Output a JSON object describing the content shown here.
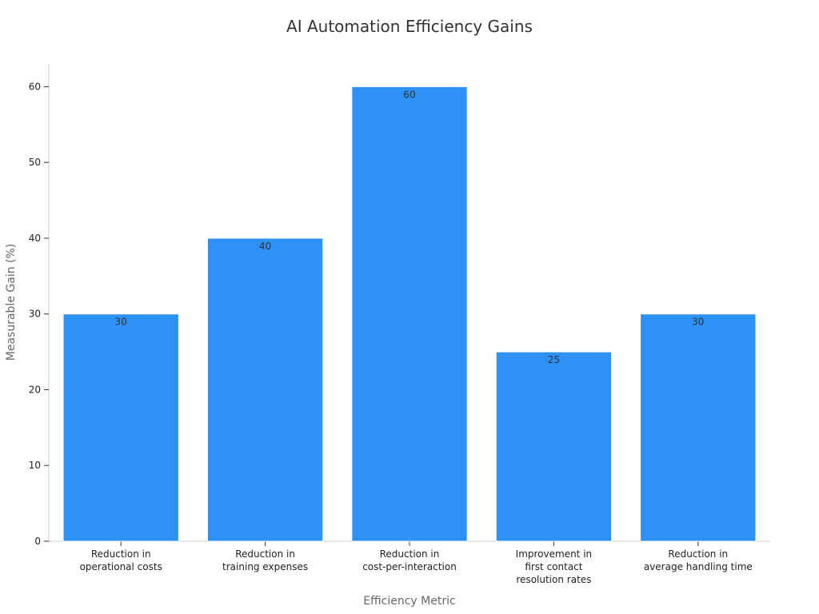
{
  "chart_data": {
    "type": "bar",
    "title": "AI Automation Efficiency Gains",
    "xlabel": "Efficiency Metric",
    "ylabel": "Measurable Gain (%)",
    "categories": [
      [
        "Reduction in",
        "operational costs"
      ],
      [
        "Reduction in",
        "training expenses"
      ],
      [
        "Reduction in",
        "cost-per-interaction"
      ],
      [
        "Improvement in",
        "first contact",
        "resolution rates"
      ],
      [
        "Reduction in",
        "average handling time"
      ]
    ],
    "values": [
      30,
      40,
      60,
      25,
      30
    ],
    "ylim": [
      0,
      63
    ],
    "yticks": [
      0,
      10,
      20,
      30,
      40,
      50,
      60
    ],
    "grid": false,
    "legend": "none",
    "bar_color": "#2e91f8"
  }
}
